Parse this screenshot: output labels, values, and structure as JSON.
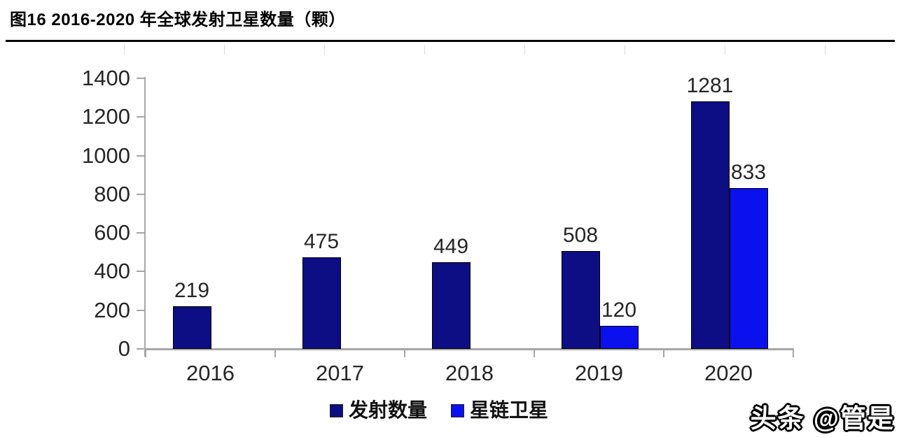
{
  "title": "图16 2016-2020 年全球发射卫星数量（颗）",
  "watermark": "头条 @管是",
  "chart_data": {
    "type": "bar",
    "title": "图16 2016-2020 年全球发射卫星数量（颗）",
    "categories": [
      "2016",
      "2017",
      "2018",
      "2019",
      "2020"
    ],
    "series": [
      {
        "name": "发射数量",
        "color": "#0d0d84",
        "values": [
          219,
          475,
          449,
          508,
          1281
        ]
      },
      {
        "name": "星链卫星",
        "color": "#0a11ee",
        "values": [
          null,
          null,
          null,
          120,
          833
        ]
      }
    ],
    "xlabel": "",
    "ylabel": "",
    "ylim": [
      0,
      1400
    ],
    "ytick_step": 200,
    "yticks": [
      0,
      200,
      400,
      600,
      800,
      1000,
      1200,
      1400
    ],
    "grid": false,
    "data_labels": true,
    "legend_position": "bottom",
    "axis_color": "#a6a6a6",
    "label_color": "#262626"
  }
}
